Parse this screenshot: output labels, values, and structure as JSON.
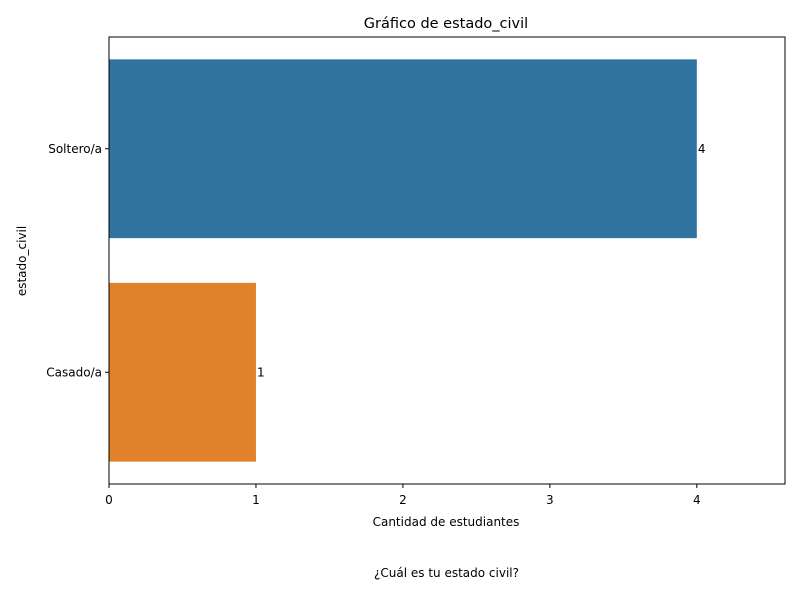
{
  "chart_data": {
    "type": "bar",
    "orientation": "horizontal",
    "title": "Gráfico de estado_civil",
    "xlabel": "Cantidad de estudiantes",
    "ylabel": "estado_civil",
    "categories": [
      "Soltero/a",
      "Casado/a"
    ],
    "values": [
      4,
      1
    ],
    "colors": [
      "#3274a1",
      "#e1812c"
    ],
    "data_labels": [
      "4",
      "1"
    ],
    "xlim": [
      0,
      4.6
    ],
    "xticks": [
      "0",
      "1",
      "2",
      "3",
      "4"
    ],
    "grid": false
  },
  "caption": "¿Cuál es tu estado civil?"
}
